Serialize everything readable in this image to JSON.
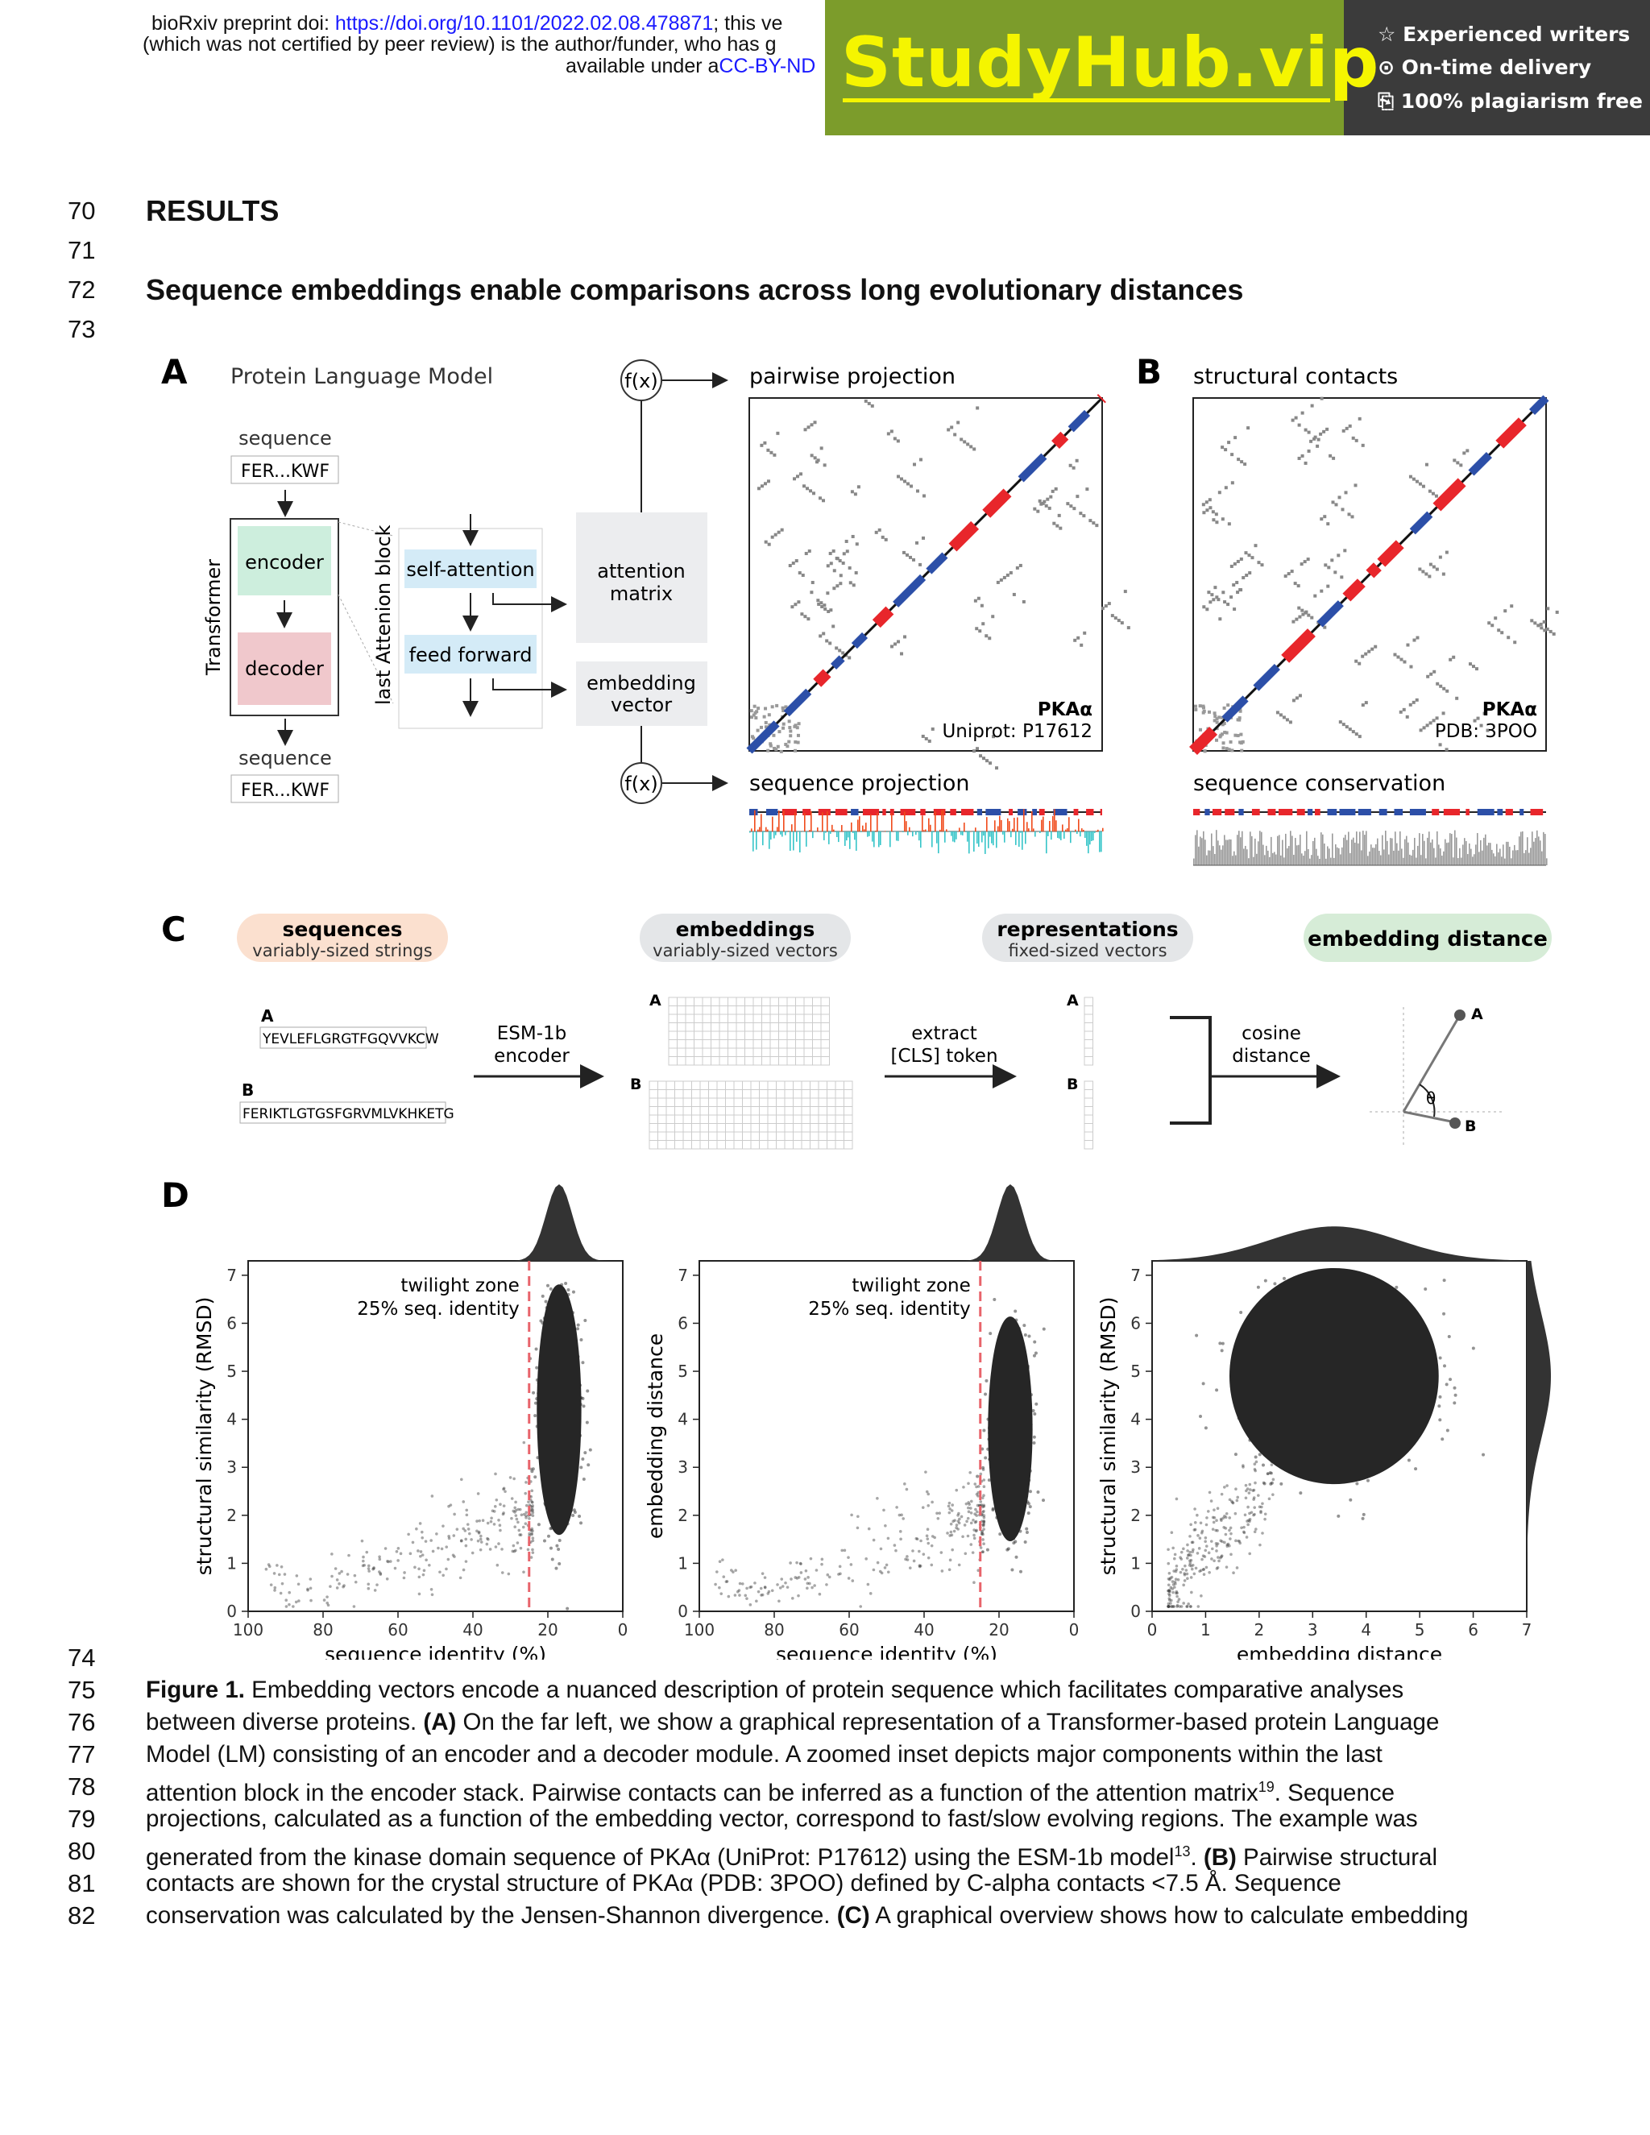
{
  "header": {
    "line1_prefix": "bioRxiv preprint doi: ",
    "line1_link": "https://doi.org/10.1101/2022.02.08.478871",
    "line1_suffix": "; this ve",
    "line2": "(which was not certified by peer review) is the author/funder, who has g",
    "line3_prefix": "available under a",
    "line3_link": "CC-BY-ND"
  },
  "ad": {
    "brand": "StudyHub.vip",
    "features": [
      "☆ Experienced writers",
      "⊙ On-time delivery",
      "⎘ 100% plagiarism free"
    ]
  },
  "line_numbers": {
    "top": [
      "70",
      "71",
      "72",
      "73"
    ],
    "caption": [
      "74",
      "75",
      "76",
      "77",
      "78",
      "79",
      "80",
      "81",
      "82"
    ]
  },
  "section_heading": "RESULTS",
  "subsection_heading": "Sequence embeddings enable comparisons across long evolutionary distances",
  "figure": {
    "panel_A": {
      "letter": "A",
      "title": "Protein Language Model",
      "sequence_label": "sequence",
      "sequence": "FER...KWF",
      "transformer_label": "Transformer",
      "encoder": "encoder",
      "decoder": "decoder",
      "block_label": "last Attenion block",
      "self_attention": "self-attention",
      "feed_forward": "feed forward",
      "attention_matrix": [
        "attention",
        "matrix"
      ],
      "embedding_vector": [
        "embedding",
        "vector"
      ],
      "fx": "f(x)",
      "pairwise_projection": "pairwise projection",
      "protein": "PKAα",
      "uniprot": "Uniprot: P17612",
      "sequence_projection": "sequence projection"
    },
    "panel_B": {
      "letter": "B",
      "title": "structural contacts",
      "protein": "PKAα",
      "pdb": "PDB: 3POO",
      "sequence_conservation": "sequence conservation"
    },
    "panel_C": {
      "letter": "C",
      "sequences_title": "sequences",
      "sequences_sub": "variably-sized strings",
      "embeddings_title": "embeddings",
      "embeddings_sub": "variably-sized vectors",
      "representations_title": "representations",
      "representations_sub": "fixed-sized vectors",
      "distance_title": "embedding distance",
      "seq_A_label": "A",
      "seq_A": "YEVLEFLGRGTFGQVVKCW",
      "seq_B_label": "B",
      "seq_B": "FERIKTLGTGSFGRVMLVKHKETG",
      "esm": [
        "ESM-1b",
        "encoder"
      ],
      "extract": [
        "extract",
        "[CLS] token"
      ],
      "cosine": [
        "cosine",
        "distance"
      ],
      "theta": "θ"
    },
    "panel_D": {
      "letter": "D",
      "twilight": [
        "twilight zone",
        "25% seq. identity"
      ]
    }
  },
  "chart_data": [
    {
      "type": "scatter",
      "xlabel": "sequence identity (%)",
      "ylabel": "structural similarity (RMSD)",
      "xlim": [
        100,
        0
      ],
      "ylim": [
        0,
        7.3
      ],
      "xticks": [
        100,
        80,
        60,
        40,
        20,
        0
      ],
      "yticks": [
        0,
        1,
        2,
        3,
        4,
        5,
        6,
        7
      ],
      "threshold_x": 25,
      "annotation": [
        "twilight zone",
        "25% seq. identity"
      ],
      "dense_cluster": {
        "x_range": [
          10,
          24
        ],
        "y_range": [
          1.2,
          7.0
        ],
        "center": [
          17,
          4.2
        ]
      },
      "marginal_top": "peak near 17%"
    },
    {
      "type": "scatter",
      "xlabel": "sequence identity (%)",
      "ylabel": "embedding distance",
      "xlim": [
        100,
        0
      ],
      "ylim": [
        0,
        7.3
      ],
      "xticks": [
        100,
        80,
        60,
        40,
        20,
        0
      ],
      "yticks": [
        0,
        1,
        2,
        3,
        4,
        5,
        6,
        7
      ],
      "threshold_x": 25,
      "annotation": [
        "twilight zone",
        "25% seq. identity"
      ],
      "dense_cluster": {
        "x_range": [
          10,
          24
        ],
        "y_range": [
          1.0,
          6.2
        ],
        "center": [
          17,
          3.8
        ]
      },
      "marginal_top": "peak near 17%"
    },
    {
      "type": "scatter",
      "xlabel": "embedding distance",
      "ylabel": "structural similarity (RMSD)",
      "xlim": [
        0,
        7
      ],
      "ylim": [
        0,
        7.3
      ],
      "xticks": [
        0,
        1,
        2,
        3,
        4,
        5,
        6,
        7
      ],
      "yticks": [
        0,
        1,
        2,
        3,
        4,
        5,
        6,
        7
      ],
      "dense_cluster": {
        "x_range": [
          1.2,
          5.8
        ],
        "y_range": [
          2.0,
          7.0
        ],
        "center": [
          3.4,
          4.9
        ]
      },
      "marginal_top": "peak near 3.3",
      "marginal_right": "peak near 5"
    }
  ],
  "caption": {
    "lines": [
      [
        {
          "b": "Figure 1."
        },
        {
          "t": " Embedding vectors encode a nuanced description of protein sequence which facilitates comparative analyses"
        }
      ],
      [
        {
          "t": "between diverse proteins. "
        },
        {
          "b": "(A)"
        },
        {
          "t": " On the far left, we show a graphical representation of a Transformer-based protein Language"
        }
      ],
      [
        {
          "t": "Model (LM) consisting of an encoder and a decoder module. A zoomed inset depicts major components within the last"
        }
      ],
      [
        {
          "t": "attention block in the encoder stack. Pairwise contacts can be inferred as a function of the attention matrix"
        },
        {
          "sup": "19"
        },
        {
          "t": ". Sequence"
        }
      ],
      [
        {
          "t": "projections, calculated as a function of the embedding vector, correspond to fast/slow evolving regions. The example was"
        }
      ],
      [
        {
          "t": "generated from the kinase domain sequence of PKAα (UniProt: P17612) using the ESM-1b model"
        },
        {
          "sup": "13"
        },
        {
          "t": ". "
        },
        {
          "b": "(B)"
        },
        {
          "t": " Pairwise structural"
        }
      ],
      [
        {
          "t": "contacts are shown for the crystal structure of PKAα (PDB: 3POO) defined by C-alpha contacts <7.5 Å. Sequence"
        }
      ],
      [
        {
          "t": "conservation was calculated by the Jensen-Shannon divergence. "
        },
        {
          "b": "(C)"
        },
        {
          "t": " A graphical overview shows how to calculate embedding"
        }
      ]
    ]
  }
}
